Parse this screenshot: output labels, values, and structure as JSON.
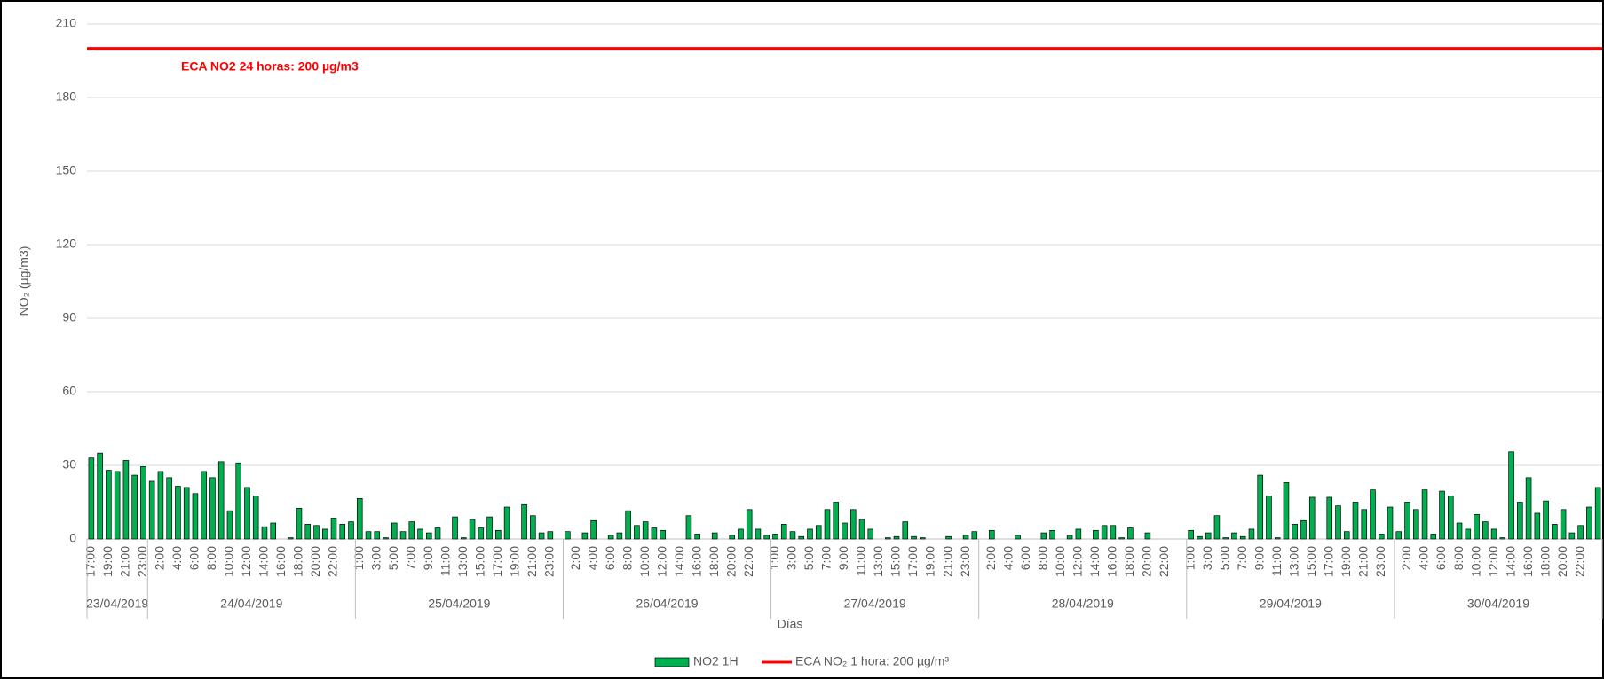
{
  "chart_data": {
    "type": "bar",
    "ylabel": "NO₂ (µg/m3)",
    "xlabel": "Días",
    "annotation": "ECA NO2 24 horas: 200 µg/m3",
    "ylim": [
      0,
      210
    ],
    "yticks": [
      0,
      30,
      60,
      90,
      120,
      150,
      180,
      210
    ],
    "grid": true,
    "legend": "bottom",
    "groups": [
      {
        "label": "23/04/2019",
        "count": 7
      },
      {
        "label": "24/04/2019",
        "count": 24
      },
      {
        "label": "25/04/2019",
        "count": 24
      },
      {
        "label": "26/04/2019",
        "count": 24
      },
      {
        "label": "27/04/2019",
        "count": 24
      },
      {
        "label": "28/04/2019",
        "count": 24
      },
      {
        "label": "29/04/2019",
        "count": 24
      },
      {
        "label": "30/04/2019",
        "count": 24
      }
    ],
    "categories": [
      "17:00",
      null,
      "19:00",
      null,
      "21:00",
      null,
      "23:00",
      null,
      "2:00",
      null,
      "4:00",
      null,
      "6:00",
      null,
      "8:00",
      null,
      "10:00",
      null,
      "12:00",
      null,
      "14:00",
      null,
      "16:00",
      null,
      "18:00",
      null,
      "20:00",
      null,
      "22:00",
      null,
      null,
      "1:00",
      null,
      "3:00",
      null,
      "5:00",
      null,
      "7:00",
      null,
      "9:00",
      null,
      "11:00",
      null,
      "13:00",
      null,
      "15:00",
      null,
      "17:00",
      null,
      "19:00",
      null,
      "21:00",
      null,
      "23:00",
      null,
      null,
      "2:00",
      null,
      "4:00",
      null,
      "6:00",
      null,
      "8:00",
      null,
      "10:00",
      null,
      "12:00",
      null,
      "14:00",
      null,
      "16:00",
      null,
      "18:00",
      null,
      "20:00",
      null,
      "22:00",
      null,
      null,
      "1:00",
      null,
      "3:00",
      null,
      "5:00",
      null,
      "7:00",
      null,
      "9:00",
      null,
      "11:00",
      null,
      "13:00",
      null,
      "15:00",
      null,
      "17:00",
      null,
      "19:00",
      null,
      "21:00",
      null,
      "23:00",
      null,
      null,
      "2:00",
      null,
      "4:00",
      null,
      "6:00",
      null,
      "8:00",
      null,
      "10:00",
      null,
      "12:00",
      null,
      "14:00",
      null,
      "16:00",
      null,
      "18:00",
      null,
      "20:00",
      null,
      "22:00",
      null,
      null,
      "1:00",
      null,
      "3:00",
      null,
      "5:00",
      null,
      "7:00",
      null,
      "9:00",
      null,
      "11:00",
      null,
      "13:00",
      null,
      "15:00",
      null,
      "17:00",
      null,
      "19:00",
      null,
      "21:00",
      null,
      "23:00",
      null,
      null,
      "2:00",
      null,
      "4:00",
      null,
      "6:00",
      null,
      "8:00",
      null,
      "10:00",
      null,
      "12:00",
      null,
      "14:00",
      null,
      "16:00",
      null,
      "18:00",
      null,
      "20:00",
      null,
      "22:00",
      null,
      null
    ],
    "series": [
      {
        "name": "NO2 1H",
        "color": "#00b050",
        "values": [
          33,
          35,
          28,
          27.5,
          32,
          26,
          29.5,
          23.5,
          27.5,
          25,
          21.5,
          21,
          18.5,
          27.5,
          25,
          31.5,
          11.5,
          31,
          21,
          17.5,
          5,
          6.5,
          0,
          0.5,
          12.5,
          6,
          5.5,
          4,
          8.5,
          6,
          7,
          16.5,
          3,
          3,
          0.5,
          6.5,
          3,
          7,
          4,
          2.5,
          4.5,
          0,
          9,
          0.5,
          8,
          4.5,
          9,
          3.5,
          13,
          0,
          14,
          9.5,
          2.5,
          3,
          0,
          3,
          0,
          2.5,
          7.5,
          0,
          1.5,
          2.5,
          11.5,
          5.5,
          7,
          4.5,
          3.5,
          0,
          0,
          9.5,
          2,
          0,
          2.5,
          0,
          1.5,
          4,
          12,
          4,
          1.5,
          2,
          6,
          3,
          1,
          4,
          5.5,
          12,
          15,
          6.5,
          12,
          8,
          4,
          0,
          0.5,
          1,
          7,
          1,
          0.5,
          0,
          0,
          1,
          0,
          1.5,
          3,
          0,
          3.5,
          0,
          0,
          1.5,
          0,
          0,
          2.5,
          3.5,
          0,
          1.5,
          4,
          0,
          3.5,
          5.5,
          5.5,
          0.5,
          4.5,
          0,
          2.5,
          0,
          0,
          0,
          0,
          3.5,
          1,
          2.5,
          9.5,
          0.5,
          2.5,
          1,
          4,
          26,
          17.5,
          0.5,
          23,
          6,
          7.5,
          17,
          0,
          17,
          13.5,
          3,
          15,
          12,
          20,
          2,
          13,
          3,
          15,
          12,
          20,
          2,
          19.5,
          17.5,
          6.5,
          4,
          10,
          7,
          4,
          0.5,
          35.5,
          15,
          25,
          10.5,
          15.5,
          6,
          12,
          2.5,
          5.5,
          13,
          21
        ]
      }
    ],
    "reference_line": {
      "name": "ECA NO₂ 1 hora: 200 µg/m³",
      "value": 200,
      "color": "#ff0000"
    }
  }
}
